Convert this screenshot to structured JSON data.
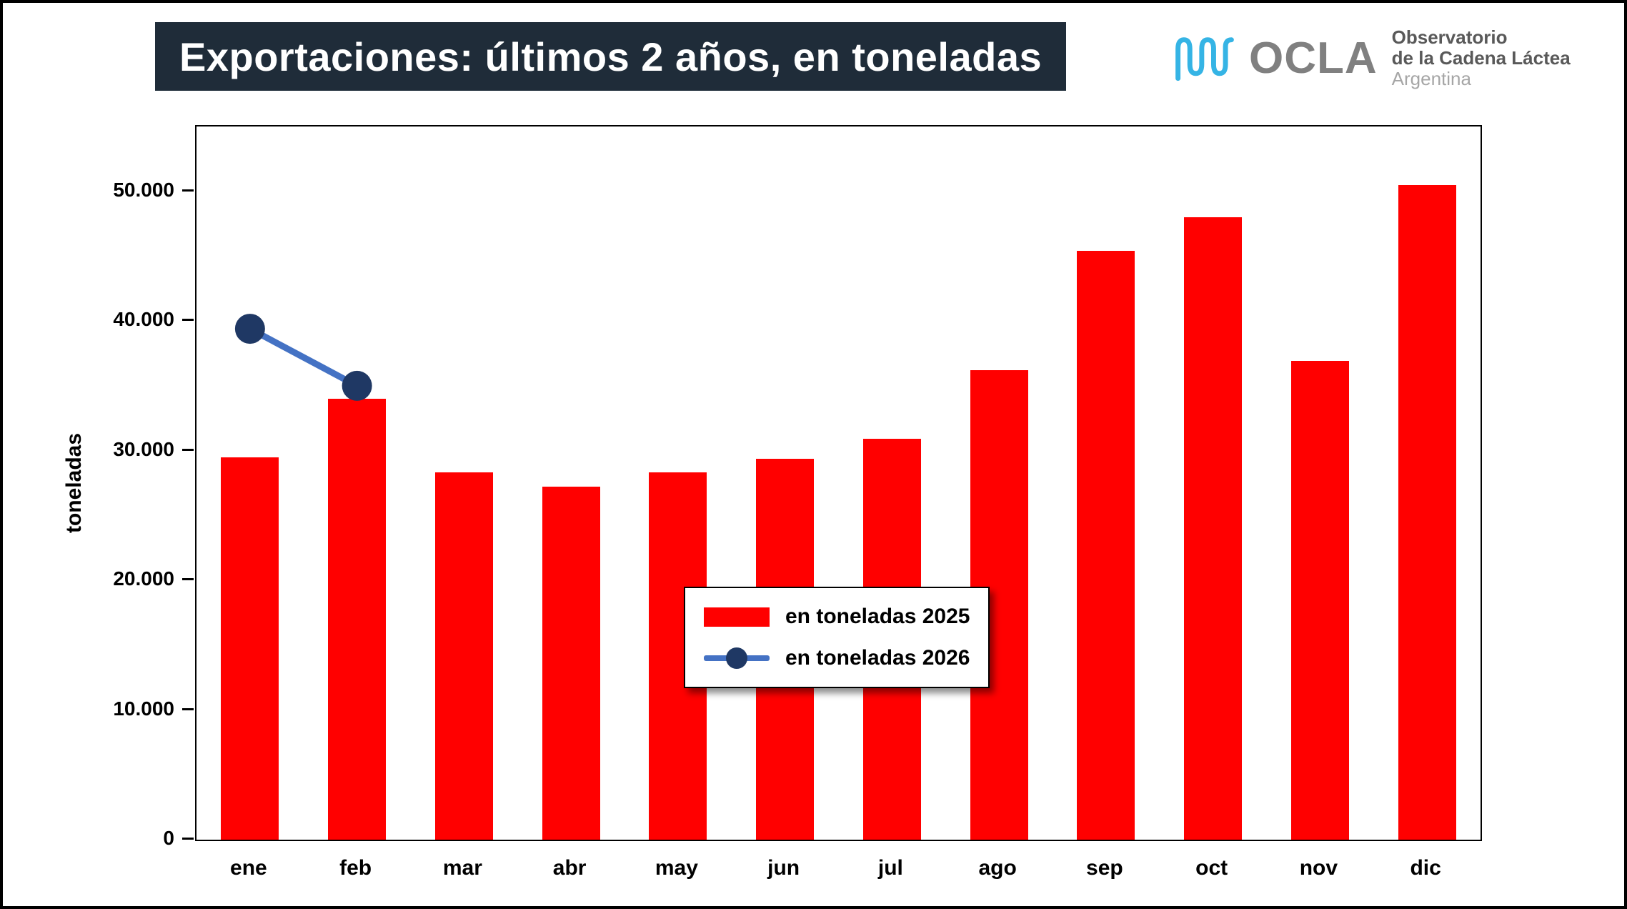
{
  "header": {
    "title": "Exportaciones: últimos 2 años, en toneladas",
    "logo": {
      "name": "OCLA",
      "line1": "Observatorio",
      "line2": "de la Cadena Láctea",
      "line3": "Argentina"
    }
  },
  "chart_data": {
    "type": "bar",
    "title": "Exportaciones: últimos 2 años, en toneladas",
    "categories": [
      "ene",
      "feb",
      "mar",
      "abr",
      "may",
      "jun",
      "jul",
      "ago",
      "sep",
      "oct",
      "nov",
      "dic"
    ],
    "series": [
      {
        "name": "en toneladas 2025",
        "type": "bar",
        "color": "#ff0000",
        "values": [
          29500,
          34000,
          28300,
          27200,
          28300,
          29400,
          30900,
          36200,
          45400,
          48000,
          36900,
          50500
        ]
      },
      {
        "name": "en toneladas 2026",
        "type": "line",
        "color": "#4472c4",
        "marker_color": "#1f3864",
        "values": [
          39400,
          35000,
          null,
          null,
          null,
          null,
          null,
          null,
          null,
          null,
          null,
          null
        ]
      }
    ],
    "xlabel": "",
    "ylabel": "toneladas",
    "ylim": [
      0,
      55000
    ],
    "yticks": [
      {
        "value": 0,
        "label": "0"
      },
      {
        "value": 10000,
        "label": "10.000"
      },
      {
        "value": 20000,
        "label": "20.000"
      },
      {
        "value": 30000,
        "label": "30.000"
      },
      {
        "value": 40000,
        "label": "40.000"
      },
      {
        "value": 50000,
        "label": "50.000"
      }
    ],
    "grid": false,
    "legend_position": "inside-bottom-center"
  },
  "colors": {
    "title_bg": "#1f2c39",
    "title_text": "#ffffff",
    "logo_accent": "#35b4e5",
    "logo_name_text": "#808080",
    "logo_subtext": "#595959",
    "logo_subtext_light": "#a6a6a6",
    "axis_text": "#000000",
    "plot_border": "#000000"
  }
}
